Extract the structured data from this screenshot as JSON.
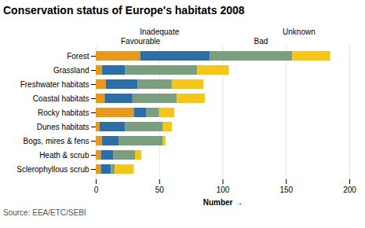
{
  "chart_data": {
    "type": "bar",
    "orientation": "horizontal",
    "stacked": true,
    "title": "Conservation status of Europe's habitats 2008",
    "caption": "Source: EEA/ETC/SEBI",
    "xlabel": "Number",
    "categories": [
      "Forest",
      "Grassland",
      "Freshwater habitats",
      "Coastal habitats",
      "Rocky habitats",
      "Dunes habitats",
      "Bogs, mires & fens",
      "Heath & scrub",
      "Sclerophyllous scrub"
    ],
    "series": [
      {
        "name": "Favourable",
        "color": "#E8981C",
        "values": [
          35,
          5,
          8,
          7,
          30,
          3,
          5,
          4,
          4
        ]
      },
      {
        "name": "Inadequate",
        "color": "#2E6EA6",
        "values": [
          55,
          18,
          25,
          22,
          10,
          20,
          13,
          10,
          8
        ]
      },
      {
        "name": "Bad",
        "color": "#7A9E7E",
        "values": [
          65,
          57,
          27,
          35,
          10,
          30,
          35,
          17,
          3
        ]
      },
      {
        "name": "Unknown",
        "color": "#F5C518",
        "values": [
          30,
          25,
          25,
          22,
          12,
          7,
          2,
          5,
          15
        ]
      }
    ],
    "xlim": [
      0,
      200
    ],
    "xticks": [
      0,
      50,
      100,
      150,
      200
    ],
    "grid": true,
    "annotations": [
      {
        "text": "Favourable",
        "x": 35
      },
      {
        "text": "Inadequate",
        "x": 50
      },
      {
        "text": "Bad",
        "x": 130
      },
      {
        "text": "Unknown",
        "x": 160
      }
    ]
  }
}
